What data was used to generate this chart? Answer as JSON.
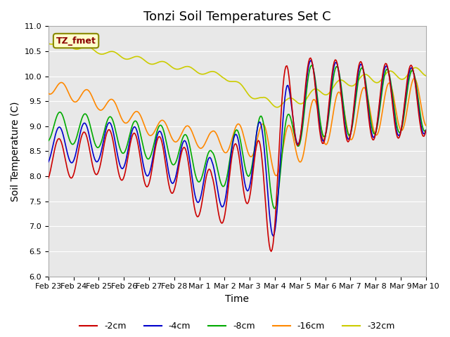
{
  "title": "Tonzi Soil Temperatures Set C",
  "xlabel": "Time",
  "ylabel": "Soil Temperature (C)",
  "ylim": [
    6.0,
    11.0
  ],
  "yticks": [
    6.0,
    6.5,
    7.0,
    7.5,
    8.0,
    8.5,
    9.0,
    9.5,
    10.0,
    10.5,
    11.0
  ],
  "xtick_labels": [
    "Feb 23",
    "Feb 24",
    "Feb 25",
    "Feb 26",
    "Feb 27",
    "Feb 28",
    "Mar 1",
    "Mar 2",
    "Mar 3",
    "Mar 4",
    "Mar 5",
    "Mar 6",
    "Mar 7",
    "Mar 8",
    "Mar 9",
    "Mar 10"
  ],
  "series_colors": [
    "#cc0000",
    "#0000cc",
    "#00aa00",
    "#ff8800",
    "#cccc00"
  ],
  "series_labels": [
    "-2cm",
    "-4cm",
    "-8cm",
    "-16cm",
    "-32cm"
  ],
  "plot_bg_color": "#e8e8e8",
  "annotation_text": "TZ_fmet",
  "annotation_bg": "#ffffcc",
  "annotation_fg": "#8b0000",
  "title_fontsize": 13,
  "label_fontsize": 10
}
